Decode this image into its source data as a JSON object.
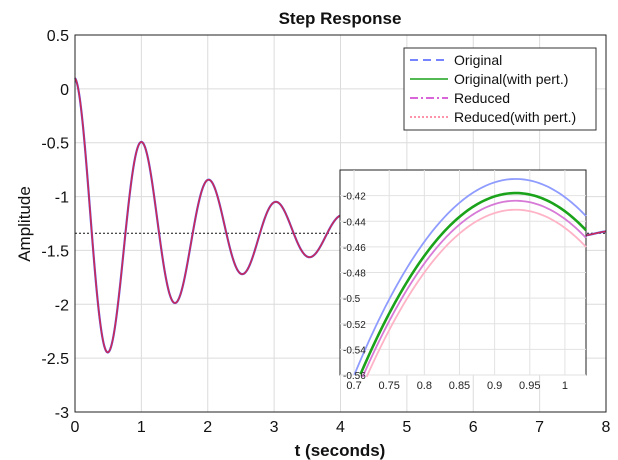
{
  "chart_data": {
    "type": "line",
    "title": "Step Response",
    "xlabel": "t (seconds)",
    "ylabel": "Amplitude",
    "xlim": [
      0,
      8
    ],
    "ylim": [
      -3,
      0.5
    ],
    "xticks": [
      "0",
      "1",
      "2",
      "3",
      "4",
      "5",
      "6",
      "7",
      "8"
    ],
    "yticks": [
      "0.5",
      "0",
      "-0.5",
      "-1",
      "-1.5",
      "-2",
      "-2.5",
      "-3"
    ],
    "grid": true,
    "legend_position": "top-right",
    "steady_state": -1.34,
    "response": {
      "initial": 0.1,
      "final": -1.34,
      "frequency_rad_s": 6.2,
      "damping_ratio": 0.085,
      "t_end": 8
    },
    "series": [
      {
        "name": "Original",
        "color": "#4a5cff",
        "style": "dashed"
      },
      {
        "name": "Original(with pert.)",
        "color": "#1aa31a",
        "style": "solid"
      },
      {
        "name": "Reduced",
        "color": "#cc33cc",
        "style": "dashdot"
      },
      {
        "name": "Reduced(with pert.)",
        "color": "#ff6f8f",
        "style": "dotted"
      }
    ],
    "inset": {
      "xlim": [
        0.68,
        1.03
      ],
      "ylim": [
        -0.56,
        -0.4
      ],
      "xticks": [
        "0.7",
        "0.75",
        "0.8",
        "0.85",
        "0.9",
        "0.95",
        "1"
      ],
      "yticks": [
        "-0.42",
        "-0.44",
        "-0.46",
        "-0.48",
        "-0.5",
        "-0.52",
        "-0.54",
        "-0.56"
      ],
      "peaks": [
        {
          "series": "Original",
          "t": 0.93,
          "y": -0.407,
          "color": "#8f9cff"
        },
        {
          "series": "Original(with pert.)",
          "t": 0.93,
          "y": -0.418,
          "color": "#1aa31a"
        },
        {
          "series": "Reduced",
          "t": 0.93,
          "y": -0.424,
          "color": "#d77ad7"
        },
        {
          "series": "Reduced(with pert.)",
          "t": 0.93,
          "y": -0.431,
          "color": "#ffb3c6"
        }
      ]
    }
  }
}
